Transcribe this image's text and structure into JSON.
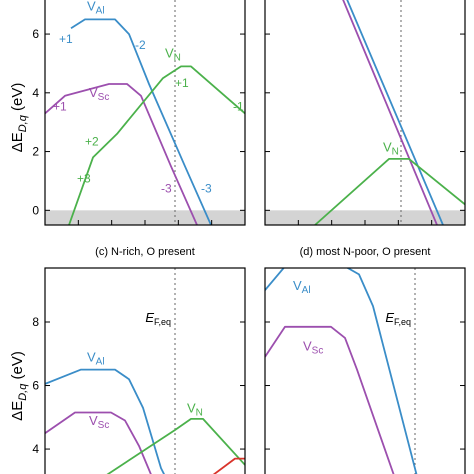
{
  "colors": {
    "V_Al": "#3a8dc8",
    "V_Sc": "#9c4fae",
    "V_N": "#4bb14b",
    "extra": "#d9342b",
    "axis": "#000000",
    "band": "#d4d4d4",
    "eq_line": "#666666"
  },
  "chart_data": [
    {
      "panel": "a",
      "type": "line",
      "title": "",
      "ylabel": "ΔE_D,q (eV)",
      "ylabel_main": "ΔE",
      "ylabel_sub": "D,q",
      "ylabel_unit": " (eV)",
      "ylim": [
        -0.5,
        7.5
      ],
      "xlim": [
        0,
        1
      ],
      "yticks": [
        0,
        2,
        4,
        6
      ],
      "ytick_labels": [
        "0",
        "2",
        "4",
        "6"
      ],
      "eq_x": 0.65,
      "band": [
        -0.5,
        0
      ],
      "series": [
        {
          "name": "V_Al",
          "label": "V",
          "sub": "Al",
          "label_x": 0.21,
          "label_y": 6.8,
          "color_key": "V_Al",
          "x": [
            0.13,
            0.2,
            0.35,
            0.42,
            0.52,
            0.7,
            0.83
          ],
          "y": [
            6.2,
            6.5,
            6.5,
            6.0,
            4.3,
            1.5,
            -0.5
          ]
        },
        {
          "name": "V_Sc",
          "label": "V",
          "sub": "Sc",
          "label_x": 0.22,
          "label_y": 3.85,
          "color_key": "V_Sc",
          "x": [
            0.0,
            0.1,
            0.32,
            0.41,
            0.48,
            0.63,
            0.76
          ],
          "y": [
            3.3,
            3.9,
            4.3,
            4.3,
            3.9,
            1.5,
            -0.5
          ]
        },
        {
          "name": "V_N",
          "label": "V",
          "sub": "N",
          "label_x": 0.6,
          "label_y": 5.2,
          "color_key": "V_N",
          "x": [
            0.12,
            0.24,
            0.36,
            0.59,
            0.68,
            0.73,
            1.0
          ],
          "y": [
            -0.5,
            1.8,
            2.6,
            4.5,
            4.9,
            4.9,
            3.3
          ]
        }
      ],
      "annotations": [
        {
          "text": "+1",
          "x": 0.07,
          "y": 5.7,
          "color_key": "V_Al"
        },
        {
          "text": "-2",
          "x": 0.45,
          "y": 5.5,
          "color_key": "V_Al"
        },
        {
          "text": "-3",
          "x": 0.78,
          "y": 0.6,
          "color_key": "V_Al"
        },
        {
          "text": "+1",
          "x": 0.04,
          "y": 3.4,
          "color_key": "V_Sc"
        },
        {
          "text": "-3",
          "x": 0.58,
          "y": 0.6,
          "color_key": "V_Sc"
        },
        {
          "text": "+1",
          "x": 0.65,
          "y": 4.2,
          "color_key": "V_N"
        },
        {
          "text": "+2",
          "x": 0.2,
          "y": 2.2,
          "color_key": "V_N"
        },
        {
          "text": "+3",
          "x": 0.16,
          "y": 0.95,
          "color_key": "V_N"
        },
        {
          "text": "-1",
          "x": 0.94,
          "y": 3.4,
          "color_key": "V_N"
        }
      ]
    },
    {
      "panel": "b",
      "type": "line",
      "title": "",
      "ylim": [
        -0.5,
        7.5
      ],
      "xlim": [
        0,
        1
      ],
      "yticks": [
        0,
        2,
        4,
        6
      ],
      "eq_x": 0.68,
      "band": [
        -0.5,
        0
      ],
      "series": [
        {
          "name": "V_Al",
          "color_key": "V_Al",
          "x": [
            0.39,
            0.89
          ],
          "y": [
            7.5,
            -0.5
          ]
        },
        {
          "name": "V_Sc",
          "color_key": "V_Sc",
          "x": [
            0.37,
            0.86
          ],
          "y": [
            7.5,
            -0.5
          ]
        },
        {
          "name": "V_N",
          "label": "V",
          "sub": "N",
          "label_x": 0.59,
          "label_y": 2.0,
          "color_key": "V_N",
          "x": [
            0.25,
            0.62,
            0.72,
            1.0
          ],
          "y": [
            -0.5,
            1.75,
            1.75,
            0.2
          ]
        }
      ],
      "annotations": []
    },
    {
      "panel": "c",
      "type": "line",
      "title": "(c) N-rich, O present",
      "ylabel": "ΔE_D,q (eV)",
      "ylabel_main": "ΔE",
      "ylabel_sub": "D,q",
      "ylabel_unit": " (eV)",
      "ylim": [
        2.9,
        9.7
      ],
      "xlim": [
        0,
        1
      ],
      "yticks": [
        4,
        6,
        8
      ],
      "ytick_labels": [
        "4",
        "6",
        "8"
      ],
      "eq_x": 0.65,
      "eq_label": "E",
      "eq_label_sub": "F,eq",
      "series": [
        {
          "name": "V_Al",
          "label": "V",
          "sub": "Al",
          "label_x": 0.21,
          "label_y": 6.75,
          "color_key": "V_Al",
          "x": [
            0.0,
            0.18,
            0.35,
            0.42,
            0.49,
            0.58,
            0.62
          ],
          "y": [
            6.05,
            6.5,
            6.5,
            6.2,
            5.3,
            3.4,
            2.9
          ]
        },
        {
          "name": "V_Sc",
          "label": "V",
          "sub": "Sc",
          "label_x": 0.22,
          "label_y": 4.75,
          "color_key": "V_Sc",
          "x": [
            0.0,
            0.15,
            0.33,
            0.4,
            0.47,
            0.55
          ],
          "y": [
            4.5,
            5.15,
            5.15,
            4.9,
            4.1,
            2.9
          ]
        },
        {
          "name": "V_N",
          "label": "V",
          "sub": "N",
          "label_x": 0.71,
          "label_y": 5.15,
          "color_key": "V_N",
          "x": [
            0.24,
            0.65,
            0.73,
            0.79,
            1.0
          ],
          "y": [
            2.9,
            4.6,
            4.95,
            4.95,
            3.5
          ]
        },
        {
          "name": "",
          "color_key": "extra",
          "x": [
            0.78,
            0.95,
            1.0
          ],
          "y": [
            2.9,
            3.7,
            3.7
          ]
        }
      ],
      "annotations": []
    },
    {
      "panel": "d",
      "type": "line",
      "title": "(d) most N-poor, O present",
      "ylim": [
        2.9,
        9.7
      ],
      "xlim": [
        0,
        1
      ],
      "yticks": [
        4,
        6,
        8
      ],
      "eq_x": 0.75,
      "eq_label": "E",
      "eq_label_sub": "F,eq",
      "series": [
        {
          "name": "V_Al",
          "label": "V",
          "sub": "Al",
          "label_x": 0.14,
          "label_y": 9.0,
          "color_key": "V_Al",
          "x": [
            0.0,
            0.1,
            0.4,
            0.47,
            0.54,
            0.77
          ],
          "y": [
            9.0,
            9.75,
            9.75,
            9.5,
            8.5,
            2.9
          ]
        },
        {
          "name": "V_Sc",
          "label": "V",
          "sub": "Sc",
          "label_x": 0.19,
          "label_y": 7.1,
          "color_key": "V_Sc",
          "x": [
            0.0,
            0.1,
            0.33,
            0.4,
            0.46,
            0.66
          ],
          "y": [
            6.9,
            7.85,
            7.85,
            7.5,
            6.5,
            2.9
          ]
        }
      ],
      "annotations": []
    }
  ]
}
